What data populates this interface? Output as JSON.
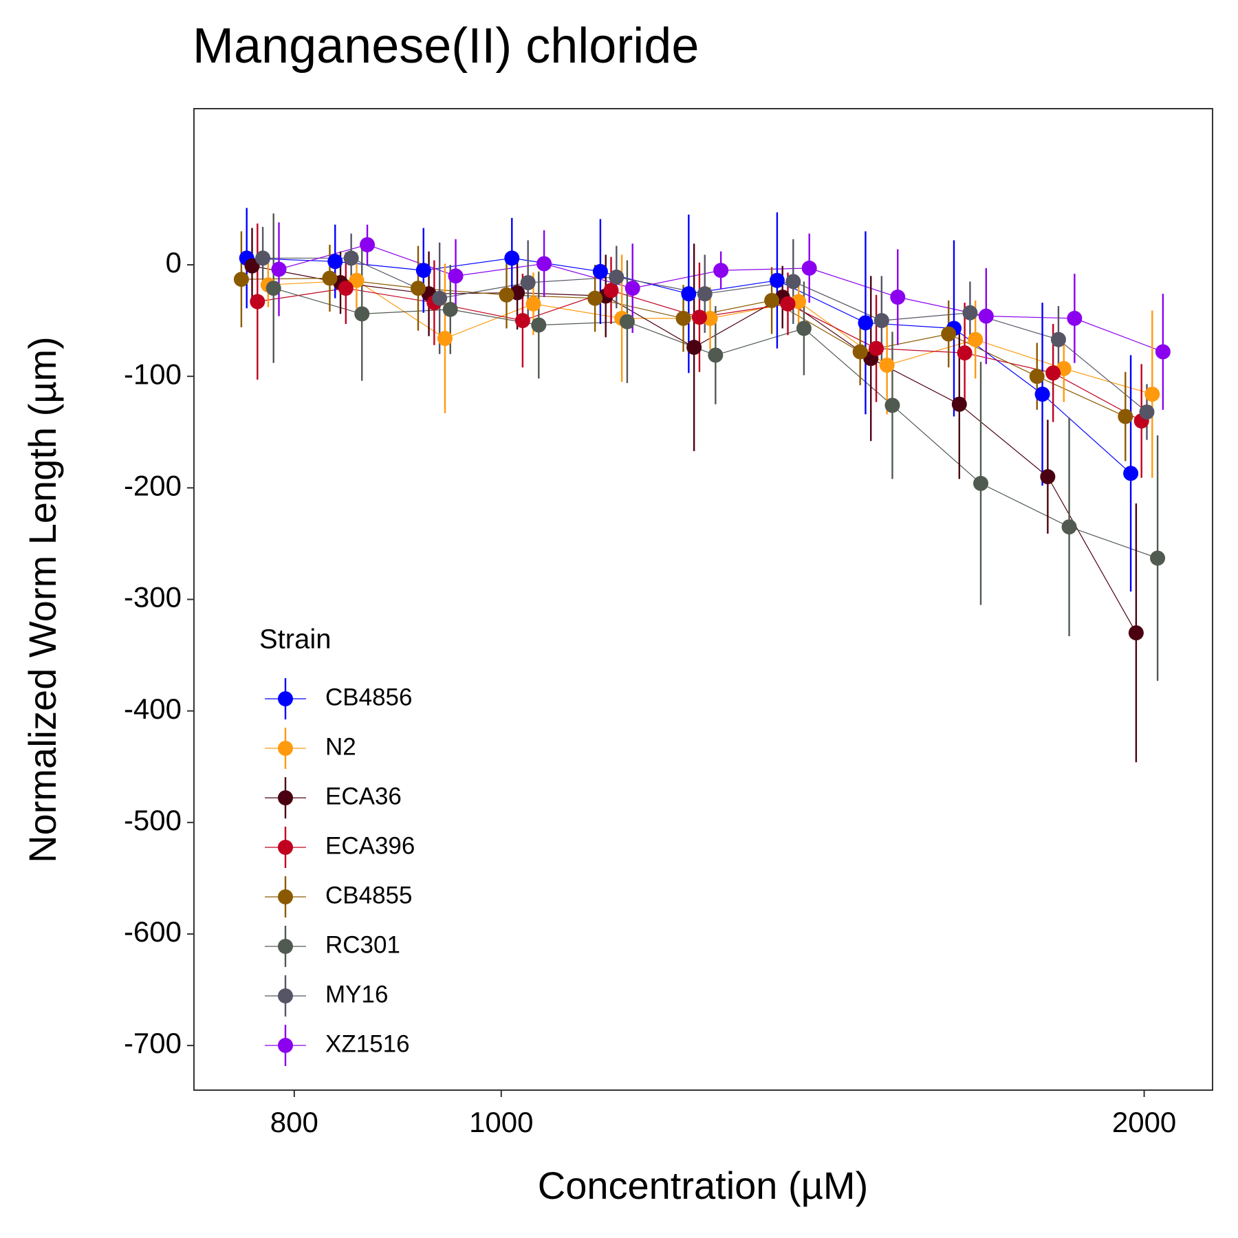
{
  "chart_data": {
    "type": "line",
    "title": "Manganese(II) chloride",
    "x_label": "Concentration (µM)",
    "y_label": "Normalized Worm Length (µm)",
    "legend_title": "Strain",
    "legend_position": "bottom-left",
    "x_scale": "log",
    "x": [
      771.1,
      848.2,
      933.0,
      1026.3,
      1129.0,
      1241.8,
      1366.0,
      1502.6,
      1652.9,
      1818.2,
      2000
    ],
    "xlim": [
      718,
      2153
    ],
    "xticks": [
      800,
      1000,
      2000
    ],
    "ylim": [
      -740,
      140
    ],
    "yticks": [
      -700,
      -600,
      -500,
      -400,
      -300,
      -200,
      -100,
      0
    ],
    "grid": false,
    "series": [
      {
        "name": "CB4856",
        "color": "#0000ff",
        "values": [
          6,
          3,
          -5,
          6,
          -6,
          -26,
          -14,
          -52,
          -57,
          -116,
          -187
        ],
        "errors": [
          45,
          33,
          38,
          36,
          47,
          71,
          61,
          82,
          79,
          82,
          106
        ]
      },
      {
        "name": "N2",
        "color": "#ff9a0e",
        "values": [
          -18,
          -14,
          -66,
          -35,
          -48,
          -48,
          -33,
          -90,
          -67,
          -93,
          -116
        ],
        "errors": [
          20,
          25,
          67,
          28,
          57,
          28,
          20,
          44,
          35,
          30,
          75
        ]
      },
      {
        "name": "ECA36",
        "color": "#4a0010",
        "values": [
          -1,
          -16,
          -26,
          -25,
          -28,
          -74,
          -29,
          -84,
          -125,
          -190,
          -330
        ],
        "errors": [
          34,
          28,
          38,
          33,
          37,
          93,
          28,
          74,
          67,
          51,
          116
        ]
      },
      {
        "name": "ECA396",
        "color": "#c0001e",
        "values": [
          -33,
          -21,
          -34,
          -50,
          -23,
          -47,
          -35,
          -75,
          -79,
          -97,
          -140
        ],
        "errors": [
          70,
          32,
          38,
          42,
          30,
          49,
          28,
          48,
          45,
          44,
          51
        ]
      },
      {
        "name": "CB4855",
        "color": "#8b5a00",
        "values": [
          -13,
          -12,
          -21,
          -27,
          -30,
          -48,
          -32,
          -78,
          -62,
          -100,
          -136
        ],
        "errors": [
          43,
          30,
          38,
          30,
          30,
          30,
          30,
          30,
          30,
          30,
          40
        ]
      },
      {
        "name": "RC301",
        "color": "#505a50",
        "values": [
          -21,
          -44,
          -40,
          -54,
          -51,
          -81,
          -57,
          -126,
          -196,
          -235,
          -263
        ],
        "errors": [
          67,
          60,
          40,
          48,
          55,
          44,
          42,
          66,
          109,
          98,
          110
        ]
      },
      {
        "name": "MY16",
        "color": "#555566",
        "values": [
          6,
          6,
          -30,
          -16,
          -11,
          -26,
          -15,
          -50,
          -43,
          -67,
          -132
        ],
        "errors": [
          28,
          22,
          50,
          38,
          28,
          35,
          38,
          40,
          28,
          30,
          25
        ]
      },
      {
        "name": "XZ1516",
        "color": "#8b00ee",
        "values": [
          -4,
          18,
          -10,
          1,
          -21,
          -5,
          -3,
          -29,
          -46,
          -48,
          -78
        ],
        "errors": [
          42,
          18,
          33,
          30,
          40,
          17,
          31,
          43,
          43,
          40,
          52
        ]
      }
    ]
  }
}
